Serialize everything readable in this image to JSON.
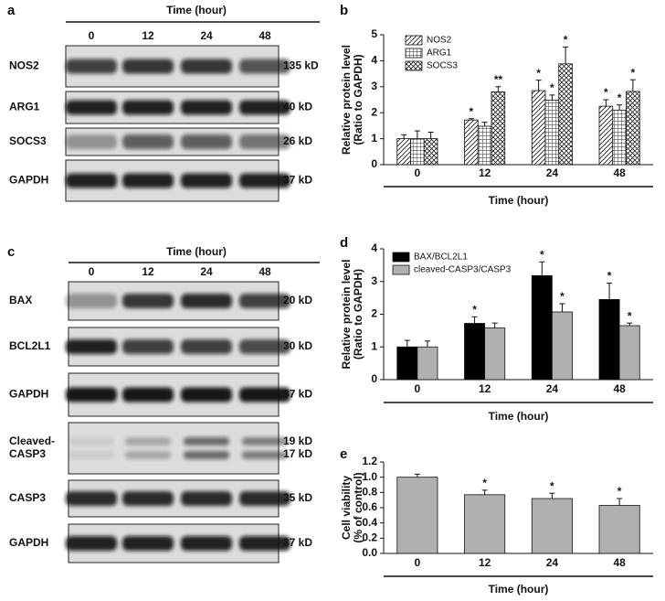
{
  "blots_a": {
    "panel": "a",
    "time_label": "Time (hour)",
    "lanes": [
      "0",
      "12",
      "24",
      "48"
    ],
    "rows": [
      {
        "name": [
          "NOS2"
        ],
        "sizes": [
          "135 kD"
        ]
      },
      {
        "name": [
          "ARG1"
        ],
        "sizes": [
          "40 kD"
        ]
      },
      {
        "name": [
          "SOCS3"
        ],
        "sizes": [
          "26 kD"
        ]
      },
      {
        "name": [
          "GAPDH"
        ],
        "sizes": [
          "37 kD"
        ]
      }
    ]
  },
  "blots_c": {
    "panel": "c",
    "time_label": "Time (hour)",
    "lanes": [
      "0",
      "12",
      "24",
      "48"
    ],
    "rows": [
      {
        "name": [
          "BAX"
        ],
        "sizes": [
          "20 kD"
        ]
      },
      {
        "name": [
          "BCL2L1"
        ],
        "sizes": [
          "30 kD"
        ]
      },
      {
        "name": [
          "GAPDH"
        ],
        "sizes": [
          "37 kD"
        ]
      },
      {
        "name": [
          "Cleaved-",
          "CASP3"
        ],
        "sizes": [
          "19 kD",
          "17 kD"
        ]
      },
      {
        "name": [
          "CASP3"
        ],
        "sizes": [
          "35 kD"
        ]
      },
      {
        "name": [
          "GAPDH"
        ],
        "sizes": [
          "37 kD"
        ]
      }
    ]
  },
  "chart_data": [
    {
      "type": "bar",
      "panel": "b",
      "ylabel": [
        "Relative protein level",
        "(Ratio to GAPDH)"
      ],
      "xlabel": "Time (hour)",
      "categories": [
        "0",
        "12",
        "24",
        "48"
      ],
      "ylim": [
        0,
        5
      ],
      "yticks": [
        0,
        1,
        2,
        3,
        4,
        5
      ],
      "legend": "top-left",
      "series": [
        {
          "name": "NOS2",
          "color": "#ffffff",
          "hatch": "diagonal",
          "values": [
            1.0,
            1.72,
            2.85,
            2.25
          ],
          "errors": [
            0.15,
            0.05,
            0.4,
            0.25
          ],
          "annotations": [
            null,
            "*",
            "*",
            "*"
          ]
        },
        {
          "name": "ARG1",
          "color": "#ffffff",
          "hatch": "grid",
          "values": [
            1.0,
            1.48,
            2.48,
            2.1
          ],
          "errors": [
            0.3,
            0.15,
            0.2,
            0.2
          ],
          "annotations": [
            null,
            null,
            "*",
            "*"
          ]
        },
        {
          "name": "SOCS3",
          "color": "#ffffff",
          "hatch": "cross",
          "values": [
            1.0,
            2.8,
            3.88,
            2.82
          ],
          "errors": [
            0.25,
            0.2,
            0.65,
            0.45
          ],
          "annotations": [
            null,
            "**",
            "*",
            "*"
          ]
        }
      ]
    },
    {
      "type": "bar",
      "panel": "d",
      "ylabel": [
        "Relative protein level",
        "(Ratio to GAPDH)"
      ],
      "xlabel": "Time (hour)",
      "categories": [
        "0",
        "12",
        "24",
        "48"
      ],
      "ylim": [
        0,
        4
      ],
      "yticks": [
        0,
        1,
        2,
        3,
        4
      ],
      "legend": "top-left",
      "series": [
        {
          "name": "BAX/BCL2L1",
          "color": "#000000",
          "values": [
            1.0,
            1.72,
            3.18,
            2.45
          ],
          "errors": [
            0.2,
            0.2,
            0.42,
            0.5
          ],
          "annotations": [
            null,
            "*",
            "*",
            "*"
          ]
        },
        {
          "name": "cleaved-CASP3/CASP3",
          "color": "#b0b0b0",
          "values": [
            1.0,
            1.58,
            2.07,
            1.65
          ],
          "errors": [
            0.18,
            0.15,
            0.25,
            0.08
          ],
          "annotations": [
            null,
            null,
            "*",
            "*"
          ]
        }
      ]
    },
    {
      "type": "bar",
      "panel": "e",
      "ylabel": [
        "Cell viability",
        "(% of control)"
      ],
      "xlabel": "Time (hour)",
      "categories": [
        "0",
        "12",
        "24",
        "48"
      ],
      "ylim": [
        0,
        1.2
      ],
      "yticks": [
        {
          "value": 0,
          "label": "0.0"
        },
        0.2,
        0.4,
        0.6,
        0.8,
        {
          "value": 1,
          "label": "1.0"
        },
        1.2
      ],
      "color": "#b0b0b0",
      "values": [
        1.0,
        0.77,
        0.72,
        0.63
      ],
      "errors": [
        0.04,
        0.06,
        0.07,
        0.09
      ],
      "annotations": [
        null,
        "*",
        "*",
        "*"
      ]
    }
  ]
}
